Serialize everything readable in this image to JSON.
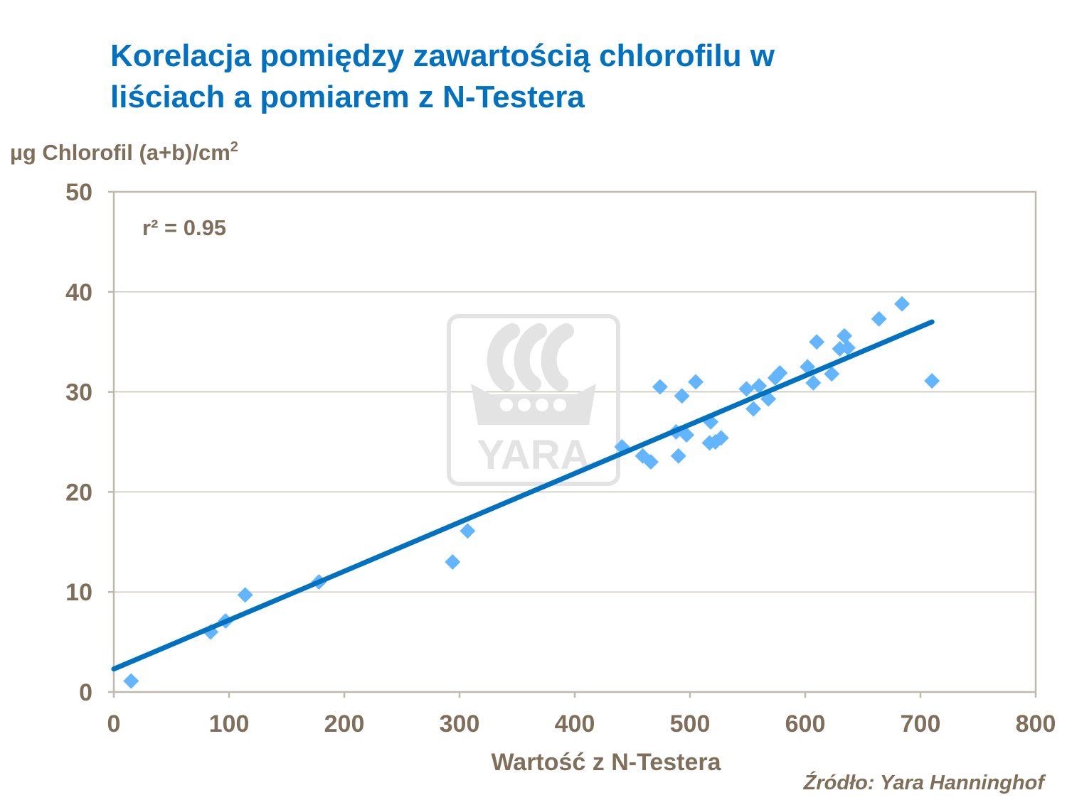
{
  "title_lines": [
    "Korelacja pomiędzy zawartością chlorofilu w",
    "liściach a pomiarem z N-Testera"
  ],
  "source": "Źródło: Yara Hanninghof",
  "watermark_text": "YARA",
  "colors": {
    "title": "#0070c0",
    "label": "#7f6f5a",
    "points": "#63b5ff",
    "trend": "#0070c0",
    "grid": "#bfb8ad",
    "watermark": "#e3e3e3"
  },
  "chart_data": {
    "type": "scatter",
    "title": "",
    "xlabel": "Wartość z N-Testera",
    "ylabel_main": "µg Chlorofil (a+b)/cm",
    "ylabel_sup": "2",
    "annotation": "r² = 0.95",
    "xlim": [
      0,
      800
    ],
    "ylim": [
      0,
      50
    ],
    "xticks": [
      0,
      100,
      200,
      300,
      400,
      500,
      600,
      700,
      800
    ],
    "yticks": [
      0,
      10,
      20,
      30,
      40,
      50
    ],
    "grid": true,
    "trendline": {
      "x": [
        0,
        710
      ],
      "y": [
        2.3,
        37
      ]
    },
    "points": [
      {
        "x": 15,
        "y": 1.1
      },
      {
        "x": 84,
        "y": 6.0
      },
      {
        "x": 97,
        "y": 7.1
      },
      {
        "x": 114,
        "y": 9.7
      },
      {
        "x": 178,
        "y": 11.0
      },
      {
        "x": 294,
        "y": 13.0
      },
      {
        "x": 307,
        "y": 16.1
      },
      {
        "x": 441,
        "y": 24.5
      },
      {
        "x": 459,
        "y": 23.6
      },
      {
        "x": 466,
        "y": 23.0
      },
      {
        "x": 474,
        "y": 30.5
      },
      {
        "x": 488,
        "y": 26.0
      },
      {
        "x": 490,
        "y": 23.6
      },
      {
        "x": 493,
        "y": 29.6
      },
      {
        "x": 497,
        "y": 25.7
      },
      {
        "x": 505,
        "y": 31.0
      },
      {
        "x": 517,
        "y": 24.9
      },
      {
        "x": 518,
        "y": 27.0
      },
      {
        "x": 522,
        "y": 25.0
      },
      {
        "x": 527,
        "y": 25.4
      },
      {
        "x": 549,
        "y": 30.3
      },
      {
        "x": 555,
        "y": 28.3
      },
      {
        "x": 560,
        "y": 30.6
      },
      {
        "x": 568,
        "y": 29.3
      },
      {
        "x": 574,
        "y": 31.4
      },
      {
        "x": 578,
        "y": 31.9
      },
      {
        "x": 602,
        "y": 32.5
      },
      {
        "x": 607,
        "y": 30.9
      },
      {
        "x": 610,
        "y": 35.0
      },
      {
        "x": 623,
        "y": 31.8
      },
      {
        "x": 630,
        "y": 34.3
      },
      {
        "x": 634,
        "y": 35.6
      },
      {
        "x": 637,
        "y": 34.4
      },
      {
        "x": 664,
        "y": 37.3
      },
      {
        "x": 684,
        "y": 38.8
      },
      {
        "x": 710,
        "y": 31.1
      }
    ]
  }
}
